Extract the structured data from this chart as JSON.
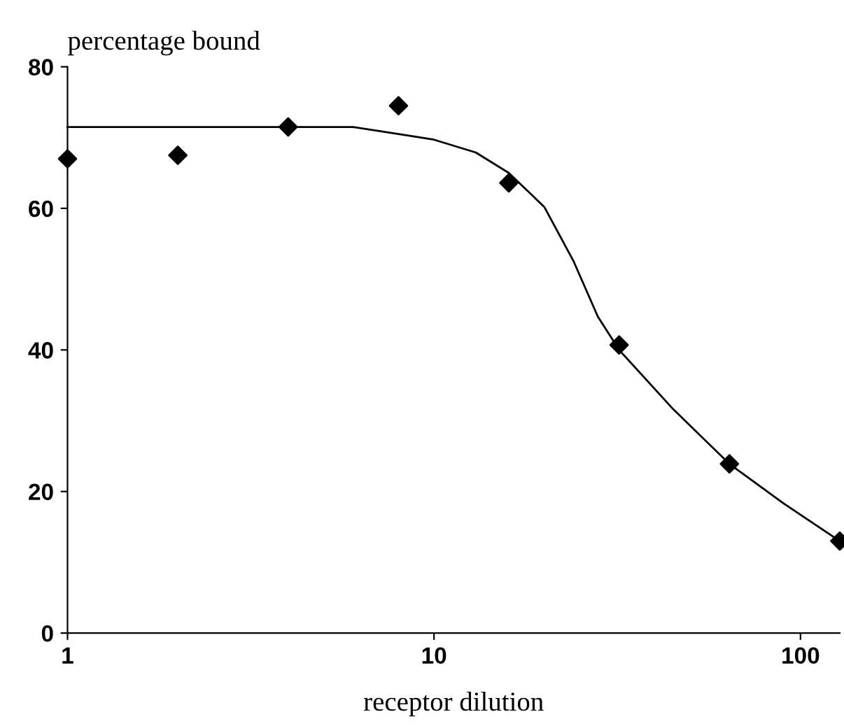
{
  "chart_data": {
    "type": "scatter",
    "xlabel": "receptor dilution",
    "ylabel": "percentage bound",
    "log": "x",
    "series": [
      {
        "color": "#000000",
        "marker": "diamond",
        "x": [
          1,
          2,
          4,
          8,
          16,
          32,
          64,
          128
        ],
        "values": [
          67,
          67.5,
          71.5,
          74.5,
          63.6,
          40.7,
          23.9,
          13
        ]
      },
      {
        "type": "line",
        "color": "#000000",
        "marker": "none",
        "x": [
          1,
          2,
          4,
          6,
          8,
          10,
          13,
          16,
          20,
          24,
          28,
          32,
          45,
          64,
          90,
          128
        ],
        "values": [
          71.5,
          71.5,
          71.5,
          71.5,
          70.5,
          69.7,
          67.9,
          65,
          60.2,
          52.6,
          44.7,
          40,
          31.6,
          23.9,
          18.3,
          13
        ]
      }
    ],
    "xlim": [
      1,
      128
    ],
    "xticks": [
      1,
      10,
      100
    ],
    "ylim": [
      0,
      80
    ],
    "yticks": [
      0,
      20,
      40,
      60,
      80
    ],
    "grid": false
  }
}
